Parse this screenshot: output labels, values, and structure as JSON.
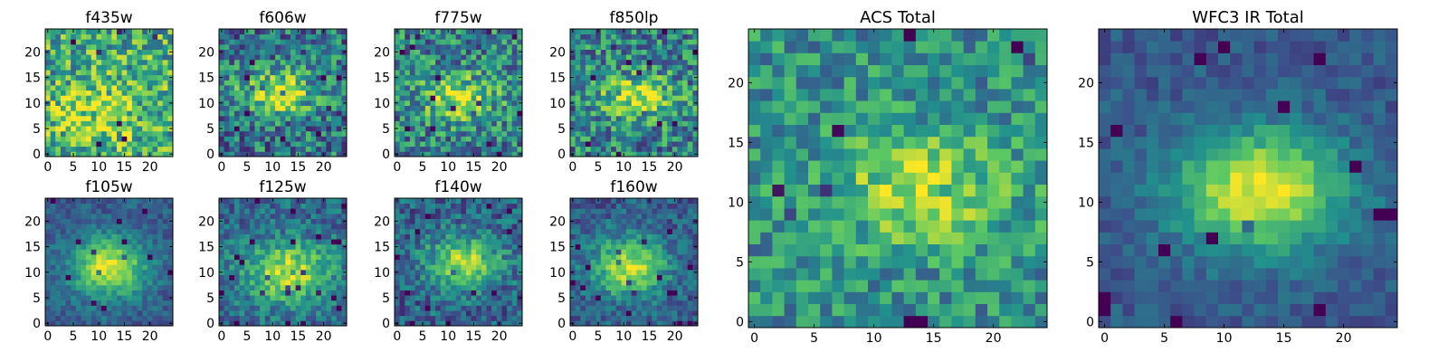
{
  "colormap": {
    "name": "viridis",
    "stops": [
      "#440154",
      "#3b528b",
      "#21908d",
      "#5dc963",
      "#fde725"
    ]
  },
  "chart_data": [
    {
      "type": "heatmap",
      "title": "f435w",
      "size": 25,
      "xticks": [
        0,
        5,
        10,
        15,
        20
      ],
      "yticks": [
        0,
        5,
        10,
        15,
        20
      ],
      "xlim": [
        0,
        25
      ],
      "ylim": [
        0,
        25
      ],
      "peak": [
        10,
        8
      ],
      "sigma": [
        6,
        4
      ],
      "amp": 0.25,
      "base": 0.62,
      "noise": 0.32,
      "seed": 11
    },
    {
      "type": "heatmap",
      "title": "f606w",
      "size": 25,
      "xticks": [
        0,
        5,
        10,
        15,
        20
      ],
      "yticks": [
        0,
        5,
        10,
        15,
        20
      ],
      "xlim": [
        0,
        25
      ],
      "ylim": [
        0,
        25
      ],
      "peak": [
        11,
        12
      ],
      "sigma": [
        5,
        3
      ],
      "amp": 0.55,
      "base": 0.4,
      "noise": 0.3,
      "seed": 23
    },
    {
      "type": "heatmap",
      "title": "f775w",
      "size": 25,
      "xticks": [
        0,
        5,
        10,
        15,
        20
      ],
      "yticks": [
        0,
        5,
        10,
        15,
        20
      ],
      "xlim": [
        0,
        25
      ],
      "ylim": [
        0,
        25
      ],
      "peak": [
        12,
        11
      ],
      "sigma": [
        5,
        3
      ],
      "amp": 0.45,
      "base": 0.45,
      "noise": 0.3,
      "seed": 37
    },
    {
      "type": "heatmap",
      "title": "f850lp",
      "size": 25,
      "xticks": [
        0,
        5,
        10,
        15,
        20
      ],
      "yticks": [
        0,
        5,
        10,
        15,
        20
      ],
      "xlim": [
        0,
        25
      ],
      "ylim": [
        0,
        25
      ],
      "peak": [
        13,
        11
      ],
      "sigma": [
        5,
        3
      ],
      "amp": 0.45,
      "base": 0.45,
      "noise": 0.3,
      "seed": 41
    },
    {
      "type": "heatmap",
      "title": "f105w",
      "size": 25,
      "xticks": [
        0,
        5,
        10,
        15,
        20
      ],
      "yticks": [
        0,
        5,
        10,
        15,
        20
      ],
      "xlim": [
        0,
        25
      ],
      "ylim": [
        0,
        25
      ],
      "peak": [
        12,
        11
      ],
      "sigma": [
        5,
        4
      ],
      "amp": 0.65,
      "base": 0.3,
      "noise": 0.12,
      "seed": 53
    },
    {
      "type": "heatmap",
      "title": "f125w",
      "size": 25,
      "xticks": [
        0,
        5,
        10,
        15,
        20
      ],
      "yticks": [
        0,
        5,
        10,
        15,
        20
      ],
      "xlim": [
        0,
        25
      ],
      "ylim": [
        0,
        25
      ],
      "peak": [
        13,
        10
      ],
      "sigma": [
        6,
        4
      ],
      "amp": 0.55,
      "base": 0.35,
      "noise": 0.18,
      "seed": 67
    },
    {
      "type": "heatmap",
      "title": "f140w",
      "size": 25,
      "xticks": [
        0,
        5,
        10,
        15,
        20
      ],
      "yticks": [
        0,
        5,
        10,
        15,
        20
      ],
      "xlim": [
        0,
        25
      ],
      "ylim": [
        0,
        25
      ],
      "peak": [
        13,
        12
      ],
      "sigma": [
        5,
        3.5
      ],
      "amp": 0.55,
      "base": 0.32,
      "noise": 0.2,
      "seed": 79
    },
    {
      "type": "heatmap",
      "title": "f160w",
      "size": 25,
      "xticks": [
        0,
        5,
        10,
        15,
        20
      ],
      "yticks": [
        0,
        5,
        10,
        15,
        20
      ],
      "xlim": [
        0,
        25
      ],
      "ylim": [
        0,
        25
      ],
      "peak": [
        11,
        11
      ],
      "sigma": [
        5,
        4
      ],
      "amp": 0.6,
      "base": 0.3,
      "noise": 0.16,
      "seed": 83
    },
    {
      "type": "heatmap",
      "title": "ACS Total",
      "size": 25,
      "xticks": [
        0,
        5,
        10,
        15,
        20
      ],
      "yticks": [
        0,
        5,
        10,
        15,
        20
      ],
      "xlim": [
        0,
        25
      ],
      "ylim": [
        0,
        25
      ],
      "peak": [
        14,
        11
      ],
      "sigma": [
        5,
        3
      ],
      "amp": 0.4,
      "base": 0.5,
      "noise": 0.22,
      "seed": 97
    },
    {
      "type": "heatmap",
      "title": "WFC3 IR Total",
      "size": 25,
      "xticks": [
        0,
        5,
        10,
        15,
        20
      ],
      "yticks": [
        0,
        5,
        10,
        15,
        20
      ],
      "xlim": [
        0,
        25
      ],
      "ylim": [
        0,
        25
      ],
      "peak": [
        13,
        11
      ],
      "sigma": [
        5,
        3.5
      ],
      "amp": 0.7,
      "base": 0.28,
      "noise": 0.1,
      "seed": 101
    }
  ]
}
